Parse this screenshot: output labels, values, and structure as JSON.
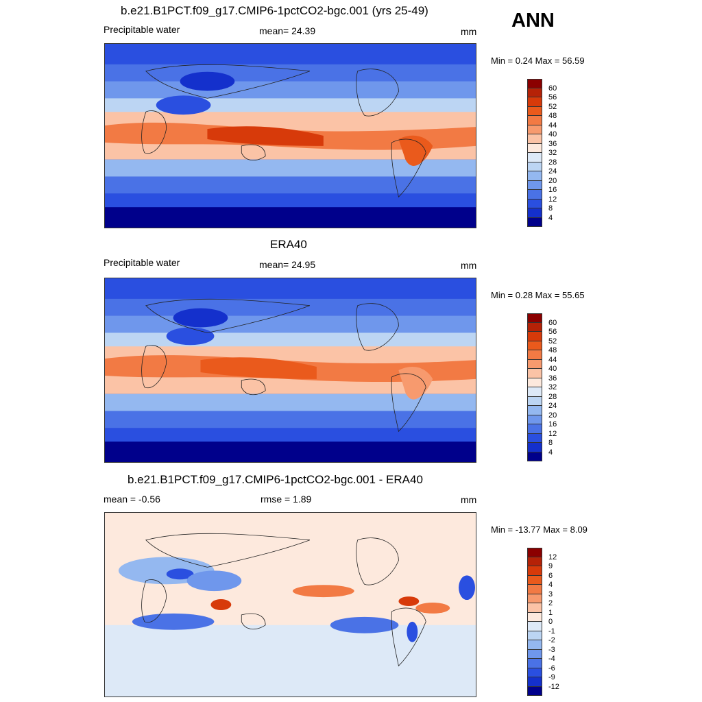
{
  "season": "ANN",
  "panels": [
    {
      "title": "b.e21.B1PCT.f09_g17.CMIP6-1pctCO2-bgc.001 (yrs 25-49)",
      "left_label": "Precipitable water",
      "center_label": "mean=  24.39",
      "units": "mm",
      "minmax": "Min =   0.24 Max =  56.59",
      "colorbar": {
        "levels": [
          "60",
          "56",
          "52",
          "48",
          "44",
          "40",
          "36",
          "32",
          "28",
          "24",
          "20",
          "16",
          "12",
          "8",
          "4"
        ],
        "colors": [
          "#8b0000",
          "#b52207",
          "#d73a0a",
          "#ea5a1c",
          "#f27a44",
          "#f79a6e",
          "#fbc3a6",
          "#fde9dd",
          "#dde9f7",
          "#bcd5f3",
          "#94b8f0",
          "#6f97ec",
          "#4a72e6",
          "#2a4fe0",
          "#1430cc",
          "#00008b"
        ]
      }
    },
    {
      "title": "ERA40",
      "left_label": "Precipitable water",
      "center_label": "mean=  24.95",
      "units": "mm",
      "minmax": "Min =   0.28 Max =  55.65",
      "colorbar": {
        "levels": [
          "60",
          "56",
          "52",
          "48",
          "44",
          "40",
          "36",
          "32",
          "28",
          "24",
          "20",
          "16",
          "12",
          "8",
          "4"
        ],
        "colors": [
          "#8b0000",
          "#b52207",
          "#d73a0a",
          "#ea5a1c",
          "#f27a44",
          "#f79a6e",
          "#fbc3a6",
          "#fde9dd",
          "#dde9f7",
          "#bcd5f3",
          "#94b8f0",
          "#6f97ec",
          "#4a72e6",
          "#2a4fe0",
          "#1430cc",
          "#00008b"
        ]
      }
    },
    {
      "title": "b.e21.B1PCT.f09_g17.CMIP6-1pctCO2-bgc.001 - ERA40",
      "left_label": "mean =  -0.56",
      "center_label": "rmse =   1.89",
      "units": "mm",
      "minmax": "Min = -13.77 Max =   8.09",
      "colorbar": {
        "levels": [
          "12",
          "9",
          "6",
          "4",
          "3",
          "2",
          "1",
          "0",
          "-1",
          "-2",
          "-3",
          "-4",
          "-6",
          "-9",
          "-12"
        ],
        "colors": [
          "#8b0000",
          "#b52207",
          "#d73a0a",
          "#ea5a1c",
          "#f27a44",
          "#f79a6e",
          "#fbc3a6",
          "#fde9dd",
          "#dde9f7",
          "#bcd5f3",
          "#94b8f0",
          "#6f97ec",
          "#4a72e6",
          "#2a4fe0",
          "#1430cc",
          "#00008b"
        ]
      }
    }
  ]
}
